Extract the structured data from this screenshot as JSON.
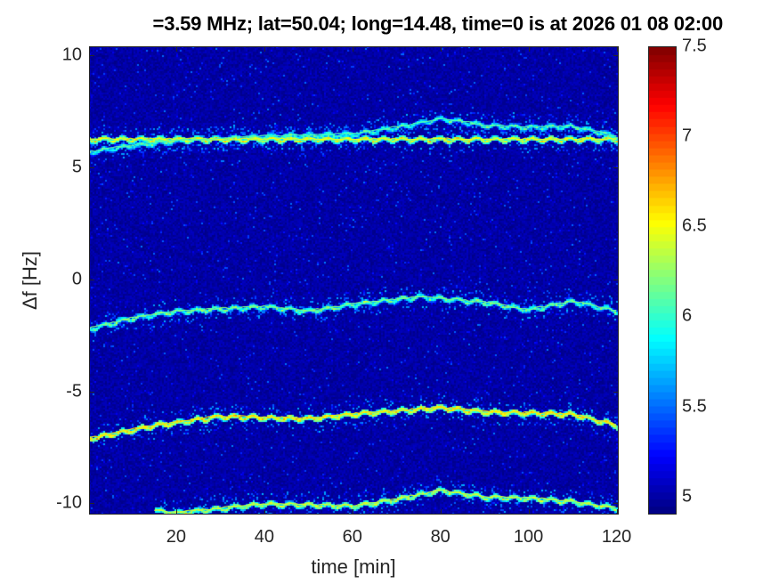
{
  "chart_data": {
    "type": "heatmap",
    "title": "=3.59 MHz;  lat=50.04; long=14.48, time=0 is at 2026 01 08 02:00",
    "xlabel": "time [min]",
    "ylabel": "Δf [Hz]",
    "xlim": [
      0.2,
      120.5
    ],
    "ylim": [
      -10.5,
      10.4
    ],
    "xticks": [
      "20",
      "40",
      "60",
      "80",
      "100",
      "120"
    ],
    "yticks": [
      "10",
      "5",
      "0",
      "-5",
      "-10"
    ],
    "colormap": "jet",
    "clim": [
      4.9,
      7.5
    ],
    "colorbar_ticks": [
      "7.5",
      "7",
      "6.5",
      "6",
      "5.5",
      "5"
    ],
    "background_level": 5.0,
    "traces": [
      {
        "t": [
          0,
          120
        ],
        "f": [
          6.27,
          6.27
        ],
        "intensity": 6.5
      },
      {
        "t": [
          0,
          10,
          20,
          40,
          60,
          70,
          80,
          90,
          100,
          110,
          120
        ],
        "f": [
          5.7,
          6.0,
          6.2,
          6.4,
          6.5,
          6.8,
          7.2,
          6.9,
          6.8,
          6.85,
          6.4
        ],
        "intensity": 6.1
      },
      {
        "t": [
          0,
          10,
          20,
          40,
          50,
          60,
          75,
          90,
          100,
          110,
          120
        ],
        "f": [
          -2.2,
          -1.7,
          -1.4,
          -1.2,
          -1.4,
          -1.1,
          -0.75,
          -1.0,
          -1.35,
          -0.95,
          -1.4
        ],
        "intensity": 6.2
      },
      {
        "t": [
          0,
          15,
          30,
          50,
          60,
          80,
          90,
          100,
          110,
          120
        ],
        "f": [
          -7.1,
          -6.5,
          -6.1,
          -6.2,
          -6.0,
          -5.7,
          -5.9,
          -5.95,
          -6.0,
          -6.5
        ],
        "intensity": 6.6
      },
      {
        "t": [
          15,
          20,
          40,
          60,
          70,
          80,
          90,
          100,
          110,
          120
        ],
        "f": [
          -10.3,
          -10.4,
          -10.0,
          -10.1,
          -9.8,
          -9.4,
          -9.7,
          -9.75,
          -9.9,
          -10.2
        ],
        "intensity": 6.4
      }
    ]
  }
}
